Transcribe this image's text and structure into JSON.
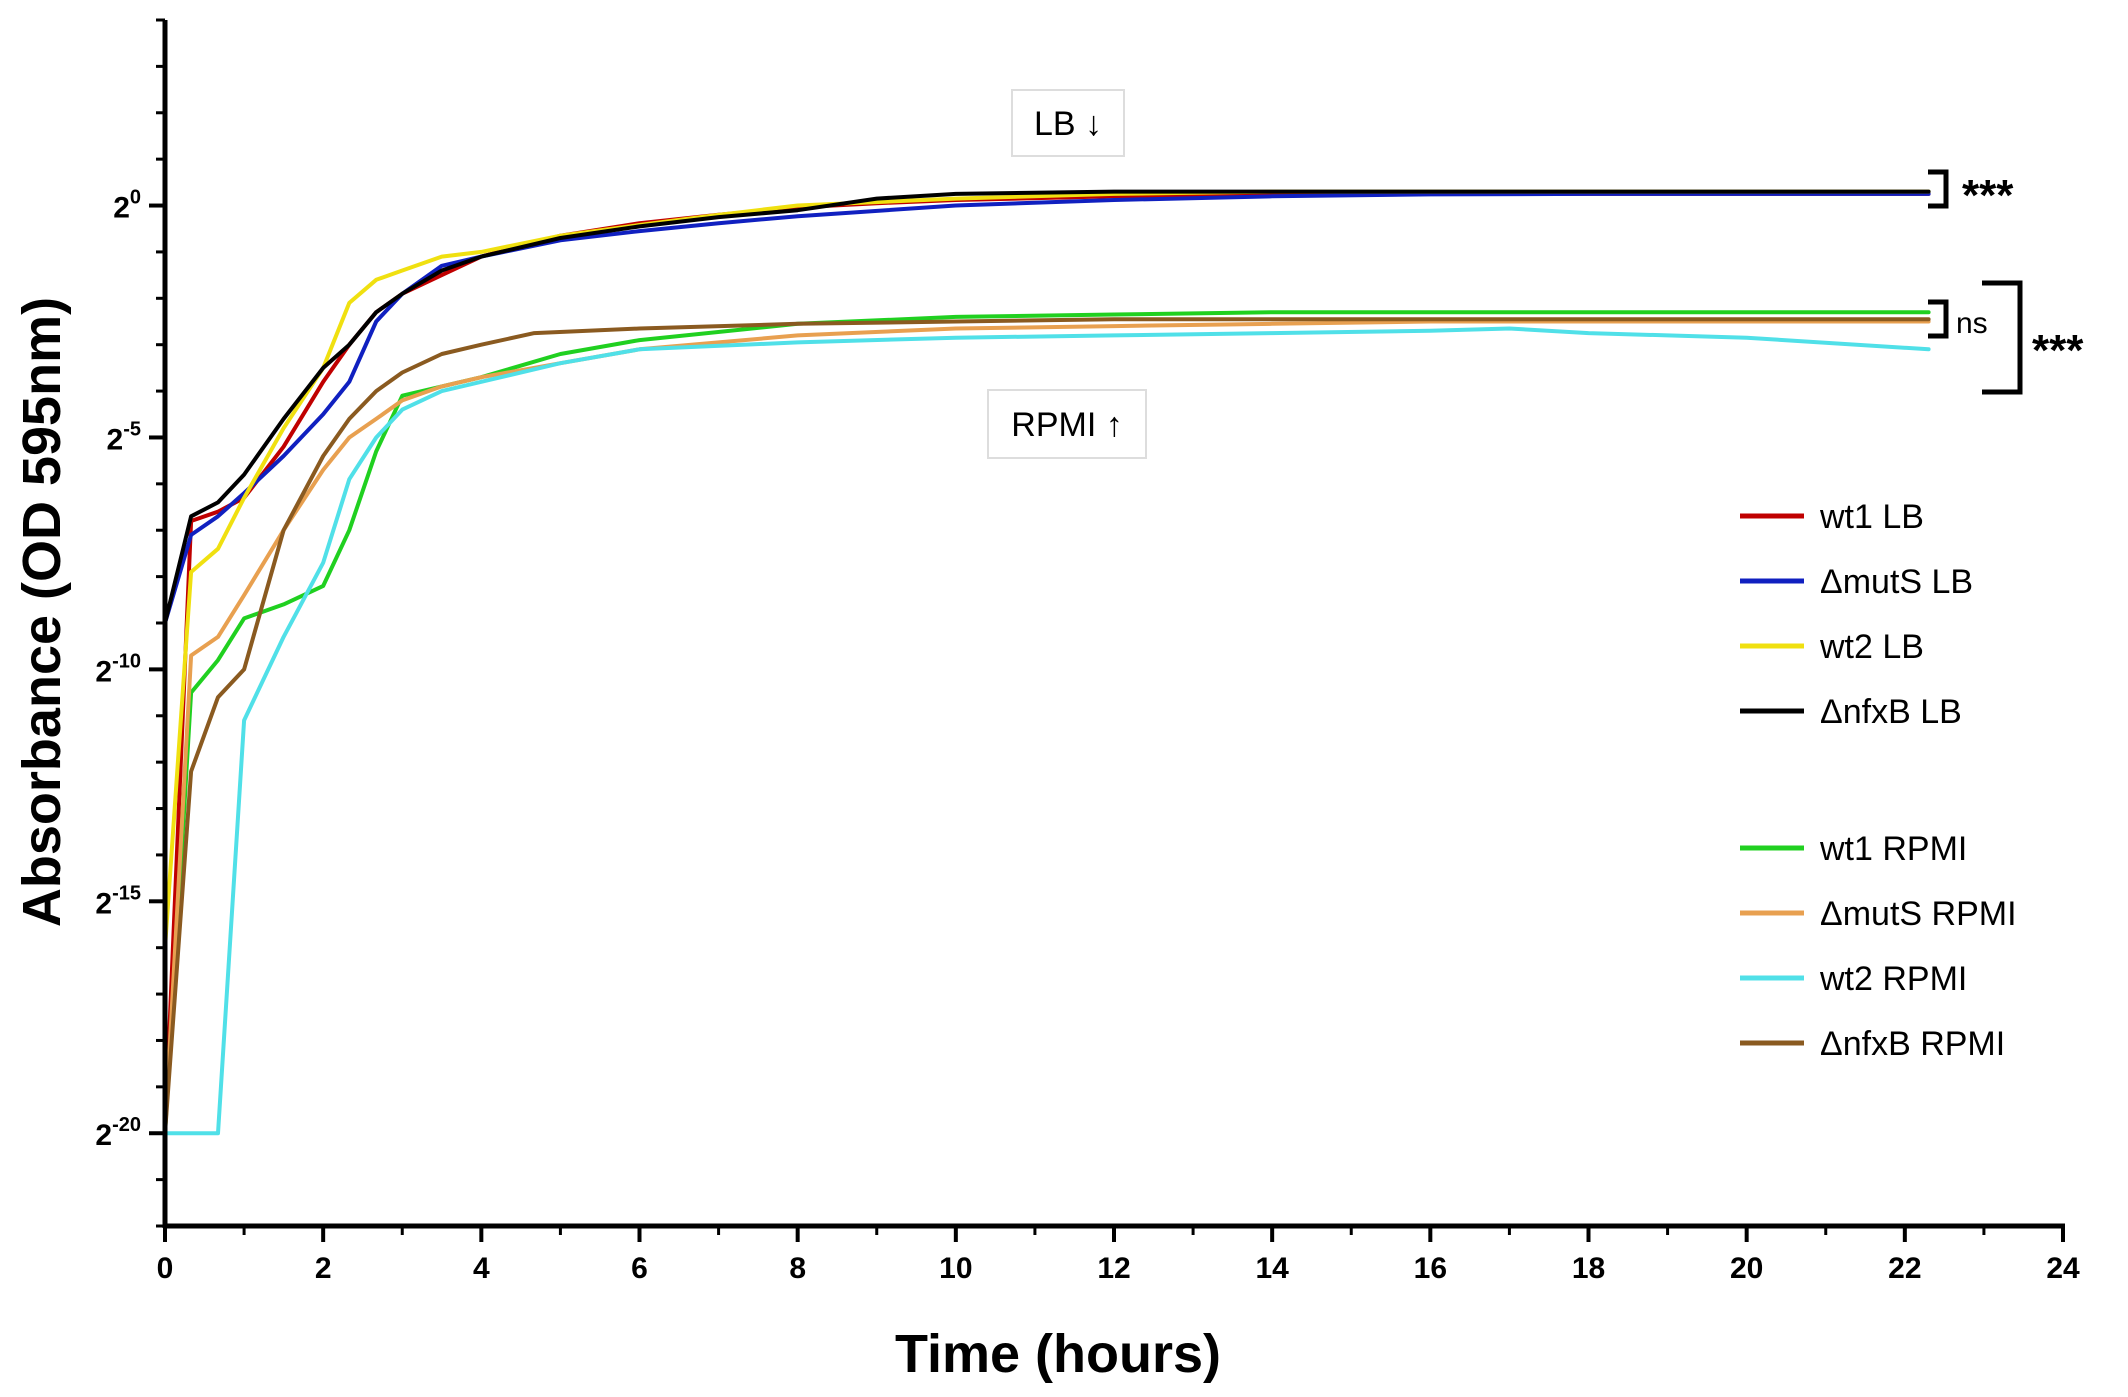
{
  "chart_data": {
    "type": "line",
    "xlabel": "Time (hours)",
    "ylabel": "Absorbance (OD 595nm)",
    "xlim": [
      0,
      24
    ],
    "x_ticks": [
      0,
      2,
      4,
      6,
      8,
      10,
      12,
      14,
      16,
      18,
      20,
      22,
      24
    ],
    "y_scale": "log2",
    "ylim_exponent": [
      -22,
      4
    ],
    "y_ticks": [
      {
        "exponent": 0,
        "base": "2",
        "sup": "0"
      },
      {
        "exponent": -5,
        "base": "2",
        "sup": "-5"
      },
      {
        "exponent": -10,
        "base": "2",
        "sup": "-10"
      },
      {
        "exponent": -15,
        "base": "2",
        "sup": "-15"
      },
      {
        "exponent": -20,
        "base": "2",
        "sup": "-20"
      }
    ],
    "grid": false,
    "legend_position": "right",
    "series": [
      {
        "name": "wt1 LB",
        "color": "#c00000",
        "x": [
          0,
          0.33,
          0.67,
          1,
          1.5,
          2,
          2.33,
          2.67,
          3,
          3.5,
          4,
          5,
          6,
          7,
          8,
          9,
          10,
          12,
          14,
          16,
          18,
          20,
          22.3
        ],
        "y": [
          -20,
          -6.8,
          -6.6,
          -6.3,
          -5.2,
          -3.8,
          -3.0,
          -2.3,
          -1.9,
          -1.5,
          -1.1,
          -0.65,
          -0.38,
          -0.2,
          -0.04,
          0.05,
          0.12,
          0.2,
          0.24,
          0.25,
          0.25,
          0.25,
          0.25
        ]
      },
      {
        "name": "ΔmutS LB",
        "color": "#1020c0",
        "x": [
          0,
          0.33,
          0.67,
          1,
          1.5,
          2,
          2.33,
          2.67,
          3,
          3.5,
          4,
          5,
          6,
          7,
          8,
          10,
          12,
          14,
          16,
          18,
          20,
          22.3
        ],
        "y": [
          -9,
          -7.1,
          -6.7,
          -6.2,
          -5.4,
          -4.5,
          -3.8,
          -2.5,
          -1.9,
          -1.3,
          -1.1,
          -0.75,
          -0.55,
          -0.38,
          -0.23,
          0.0,
          0.12,
          0.2,
          0.24,
          0.25,
          0.25,
          0.25
        ]
      },
      {
        "name": "wt2 LB",
        "color": "#f0e010",
        "x": [
          0,
          0.33,
          0.67,
          1,
          1.5,
          2,
          2.33,
          2.67,
          3,
          3.5,
          4,
          5,
          6,
          7,
          8,
          10,
          12,
          14,
          16,
          18,
          20,
          22.3
        ],
        "y": [
          -16,
          -7.9,
          -7.4,
          -6.3,
          -4.8,
          -3.5,
          -2.1,
          -1.6,
          -1.4,
          -1.1,
          -1.0,
          -0.65,
          -0.42,
          -0.2,
          0.0,
          0.15,
          0.25,
          0.3,
          0.3,
          0.3,
          0.3,
          0.3
        ]
      },
      {
        "name": "ΔnfxB LB",
        "color": "#000000",
        "x": [
          0,
          0.33,
          0.67,
          1,
          1.5,
          2,
          2.33,
          2.67,
          3,
          3.5,
          4,
          5,
          6,
          7,
          8,
          9,
          10,
          12,
          14,
          16,
          18,
          20,
          22.3
        ],
        "y": [
          -9,
          -6.7,
          -6.4,
          -5.8,
          -4.6,
          -3.5,
          -3.0,
          -2.3,
          -1.9,
          -1.4,
          -1.1,
          -0.7,
          -0.45,
          -0.25,
          -0.1,
          0.15,
          0.25,
          0.3,
          0.3,
          0.3,
          0.3,
          0.3,
          0.3
        ]
      },
      {
        "name": "wt1 RPMI",
        "color": "#20d020",
        "x": [
          0,
          0.33,
          0.67,
          1,
          1.5,
          2,
          2.33,
          2.67,
          3,
          3.5,
          4,
          5,
          6,
          8,
          10,
          12,
          14,
          16,
          18,
          20,
          22.3
        ],
        "y": [
          -20,
          -10.5,
          -9.8,
          -8.9,
          -8.6,
          -8.2,
          -7.0,
          -5.3,
          -4.1,
          -3.9,
          -3.7,
          -3.2,
          -2.9,
          -2.55,
          -2.4,
          -2.35,
          -2.3,
          -2.3,
          -2.3,
          -2.3,
          -2.3
        ]
      },
      {
        "name": "ΔmutS RPMI",
        "color": "#e8a050",
        "x": [
          0,
          0.33,
          0.67,
          1,
          1.5,
          2,
          2.33,
          2.67,
          3,
          3.5,
          4,
          5,
          6,
          8,
          10,
          12,
          14,
          16,
          18,
          20,
          22.3
        ],
        "y": [
          -20,
          -9.7,
          -9.3,
          -8.4,
          -7.0,
          -5.7,
          -5.0,
          -4.6,
          -4.2,
          -3.9,
          -3.7,
          -3.4,
          -3.1,
          -2.8,
          -2.65,
          -2.6,
          -2.55,
          -2.5,
          -2.5,
          -2.5,
          -2.5
        ]
      },
      {
        "name": "wt2 RPMI",
        "color": "#50e0e8",
        "x": [
          0,
          0.33,
          0.67,
          1,
          1.5,
          2,
          2.33,
          2.67,
          3,
          3.5,
          4,
          5,
          6,
          8,
          10,
          12,
          14,
          16,
          17,
          18,
          20,
          22.3
        ],
        "y": [
          -20,
          -20,
          -20,
          -11.1,
          -9.3,
          -7.7,
          -5.9,
          -5.0,
          -4.4,
          -4.0,
          -3.8,
          -3.4,
          -3.1,
          -2.95,
          -2.85,
          -2.8,
          -2.75,
          -2.7,
          -2.65,
          -2.75,
          -2.85,
          -3.1
        ]
      },
      {
        "name": "ΔnfxB RPMI",
        "color": "#8a5a20",
        "x": [
          0,
          0.33,
          0.67,
          1,
          1.5,
          2,
          2.33,
          2.67,
          3,
          3.5,
          4,
          4.67,
          6,
          8,
          10,
          12,
          14,
          16,
          18,
          20,
          22.3
        ],
        "y": [
          -20,
          -12.2,
          -10.6,
          -10.0,
          -7.0,
          -5.4,
          -4.6,
          -4.0,
          -3.6,
          -3.2,
          -3.0,
          -2.75,
          -2.65,
          -2.55,
          -2.5,
          -2.45,
          -2.45,
          -2.45,
          -2.45,
          -2.45,
          -2.45
        ]
      }
    ],
    "annotations": {
      "lb_label": "LB ↓",
      "rpmi_label": "RPMI ↑",
      "sig_lb": "***",
      "sig_ns": "ns",
      "sig_between": "***"
    }
  }
}
